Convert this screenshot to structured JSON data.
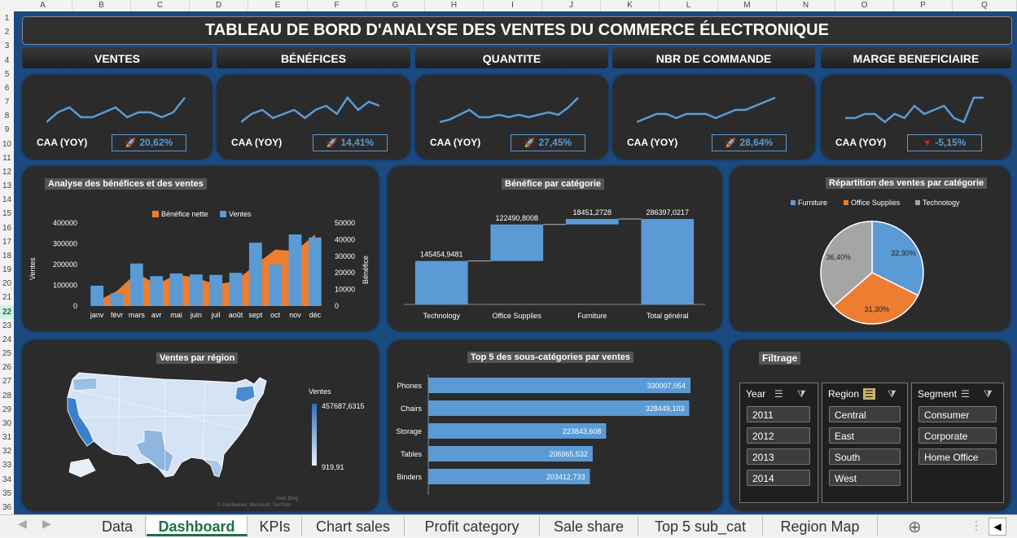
{
  "columns": [
    "A",
    "B",
    "C",
    "D",
    "E",
    "F",
    "G",
    "H",
    "I",
    "J",
    "K",
    "L",
    "M",
    "N",
    "O",
    "P",
    "Q"
  ],
  "rows": [
    "1",
    "2",
    "3",
    "4",
    "5",
    "6",
    "7",
    "8",
    "9",
    "10",
    "11",
    "12",
    "13",
    "14",
    "15",
    "16",
    "17",
    "18",
    "19",
    "20",
    "21",
    "22",
    "23",
    "24",
    "25",
    "26",
    "27",
    "28",
    "29",
    "30",
    "31",
    "32",
    "33",
    "34",
    "35",
    "36"
  ],
  "selected_row": "22",
  "dashboard_title": "TABLEAU DE BORD D'ANALYSE DES VENTES DU COMMERCE ÉLECTRONIQUE",
  "kpis": [
    {
      "header": "VENTES",
      "caa_label": "CAA (YOY)",
      "value": "20,62%",
      "trend": "up",
      "icon": "rocket-icon",
      "spark": [
        4,
        6,
        7,
        5,
        5,
        6,
        7,
        5,
        6,
        6,
        5,
        6,
        9
      ]
    },
    {
      "header": "BÉNÉFICES",
      "caa_label": "CAA (YOY)",
      "value": "14,41%",
      "trend": "up",
      "icon": "rocket-icon",
      "spark": [
        3,
        5,
        6,
        4,
        5,
        6,
        4,
        6,
        7,
        5,
        9,
        6,
        8,
        7
      ]
    },
    {
      "header": "QUANTITE",
      "caa_label": "CAA (YOY)",
      "value": "27,45%",
      "trend": "up",
      "icon": "rocket-icon",
      "spark": [
        3,
        4,
        6,
        8,
        5,
        5,
        6,
        5,
        6,
        5,
        6,
        7,
        6,
        9,
        13
      ]
    },
    {
      "header": "NBR DE COMMANDE",
      "caa_label": "CAA (YOY)",
      "value": "28,64%",
      "trend": "up",
      "icon": "rocket-icon",
      "spark": [
        3,
        4,
        5,
        5,
        4,
        5,
        5,
        5,
        4,
        5,
        6,
        6,
        7,
        8,
        9
      ]
    },
    {
      "header": "MARGE BENEFICIAIRE",
      "caa_label": "CAA (YOY)",
      "value": "-5,15%",
      "trend": "down",
      "icon": "triangle-down-icon",
      "spark": [
        6,
        6,
        7,
        7,
        5,
        7,
        6,
        9,
        7,
        8,
        9,
        6,
        5,
        11,
        11
      ]
    }
  ],
  "colors": {
    "sales": "#5b9bd5",
    "profit": "#ed7d31",
    "technology": "#a5a5a5",
    "panel": "#2b2b2b",
    "sheet": "#1b4a80"
  },
  "chart_data": [
    {
      "type": "bar",
      "title": "Analyse des bénéfices et des ventes",
      "categories": [
        "janv",
        "févr",
        "mars",
        "avr",
        "mai",
        "juin",
        "juil",
        "août",
        "sept",
        "oct",
        "nov",
        "déc"
      ],
      "series": [
        {
          "name": "Ventes",
          "type": "bar",
          "axis": "left",
          "values": [
            98000,
            60000,
            205000,
            144000,
            157000,
            152000,
            150000,
            160000,
            305000,
            200000,
            345000,
            330000
          ]
        },
        {
          "name": "Bénéfice nette",
          "type": "area",
          "axis": "right",
          "values": [
            3000,
            9000,
            20000,
            13000,
            19000,
            17000,
            13000,
            15000,
            25000,
            34000,
            33000,
            43000
          ]
        }
      ],
      "ylabel": "Ventes",
      "y2label": "Bénéfice",
      "ylim": [
        0,
        400000
      ],
      "y2lim": [
        0,
        50000
      ],
      "yticks": [
        "0",
        "100000",
        "200000",
        "300000",
        "400000"
      ],
      "y2ticks": [
        "0",
        "10000",
        "20000",
        "30000",
        "40000",
        "50000"
      ],
      "legend": "top"
    },
    {
      "type": "bar",
      "subtype": "waterfall",
      "title": "Bénéfice par catégorie",
      "categories": [
        "Technology",
        "Office Supplies",
        "Furniture",
        "Total général"
      ],
      "values": [
        145454.9481,
        122490.8008,
        18451.2728,
        286397.0217
      ],
      "labels": [
        "145454,9481",
        "122490,8008",
        "18451,2728",
        "286397,0217"
      ],
      "ylim": [
        0,
        300000
      ]
    },
    {
      "type": "pie",
      "title": "Répartition des ventes par catégorie",
      "categories": [
        "Furniture",
        "Office Supplies",
        "Technology"
      ],
      "values": [
        32.3,
        31.3,
        36.4
      ],
      "labels": [
        "32,30%",
        "31,30%",
        "36,40%"
      ],
      "legend": "top"
    },
    {
      "type": "bar",
      "orientation": "horizontal",
      "title": "Top 5 des sous-catégories par ventes",
      "categories": [
        "Phones",
        "Chairs",
        "Storage",
        "Tables",
        "Binders"
      ],
      "values": [
        330007.054,
        328449.103,
        223843.608,
        206965.532,
        203412.733
      ],
      "labels": [
        "330007,054",
        "328449,103",
        "223843,608",
        "206965,532",
        "203412,733"
      ]
    }
  ],
  "map": {
    "title": "Ventes par région",
    "legend_title": "Ventes",
    "max_label": "457687,6315",
    "min_label": "919,91",
    "credit_line1": "Avec Bing",
    "credit_line2": "© GeoNames, Microsoft, TomTom"
  },
  "filter": {
    "title": "Filtrage",
    "groups": [
      {
        "label": "Year",
        "items": [
          "2011",
          "2012",
          "2013",
          "2014"
        ]
      },
      {
        "label": "Region",
        "items": [
          "Central",
          "East",
          "South",
          "West"
        ]
      },
      {
        "label": "Segment",
        "items": [
          "Consumer",
          "Corporate",
          "Home Office"
        ]
      }
    ]
  },
  "tabs": [
    "Data",
    "Dashboard",
    "KPIs",
    "Chart sales",
    "Profit category",
    "Sale share",
    "Top 5 sub_cat",
    "Region Map"
  ],
  "active_tab": "Dashboard"
}
